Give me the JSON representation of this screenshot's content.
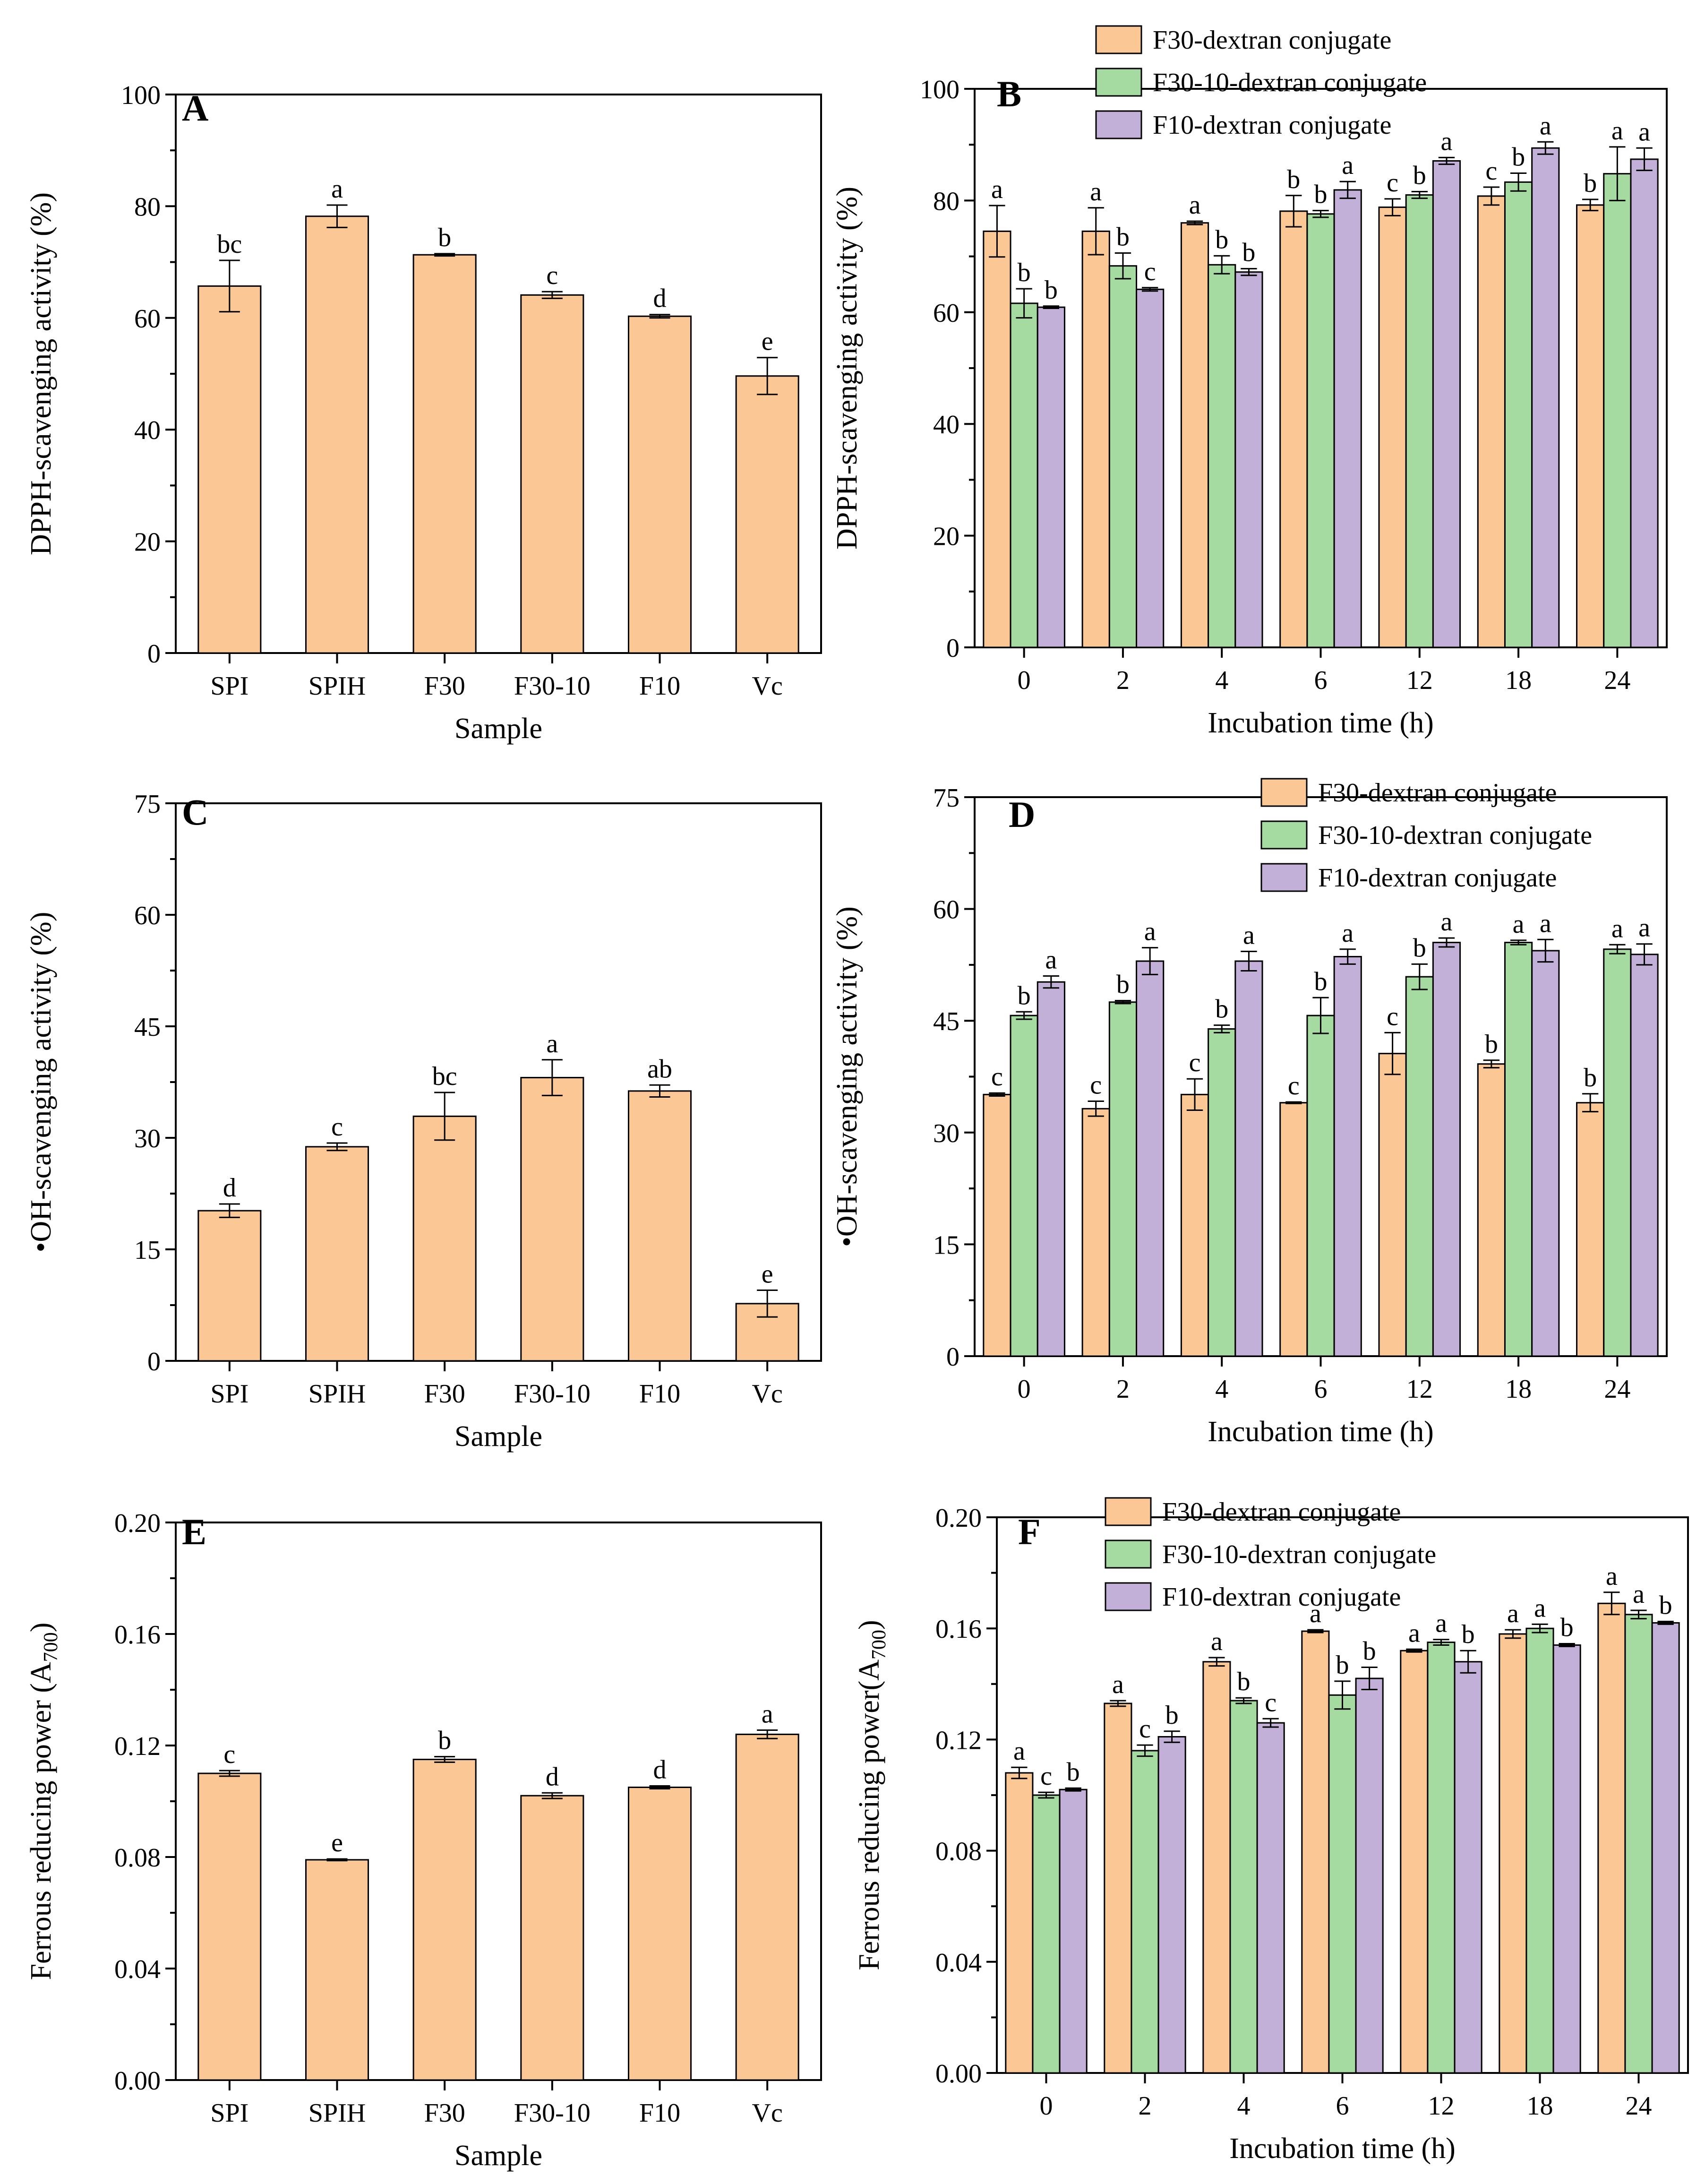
{
  "colors": {
    "f30": "#fbc795",
    "f30_10": "#a5dba0",
    "f10": "#c3b0d9",
    "single": "#fbc795"
  },
  "chart_data": [
    {
      "type": "bar",
      "panel": "A",
      "xlabel": "Sample",
      "ylabel": "DPPH-scavenging activity (%)",
      "ylim": [
        0,
        100
      ],
      "yticks": [
        "0",
        "20",
        "40",
        "60",
        "80",
        "100"
      ],
      "ytick_values": [
        0,
        20,
        40,
        60,
        80,
        100
      ],
      "categories": [
        "SPI",
        "SPIH",
        "F30",
        "F30-10",
        "F10",
        "Vc"
      ],
      "series": [
        {
          "name": "",
          "color_key": "single",
          "values": [
            65.7,
            78.2,
            71.3,
            64.1,
            60.3,
            49.6
          ],
          "errors": [
            4.6,
            2.0,
            0.2,
            0.6,
            0.3,
            3.3
          ],
          "labels": [
            "bc",
            "a",
            "b",
            "c",
            "d",
            "e"
          ]
        }
      ]
    },
    {
      "type": "bar",
      "panel": "B",
      "xlabel": "Incubation time (h)",
      "ylabel": "DPPH-scavenging activity (%)",
      "ylim": [
        0,
        100
      ],
      "yticks": [
        "0",
        "20",
        "40",
        "60",
        "80",
        "100"
      ],
      "ytick_values": [
        0,
        20,
        40,
        60,
        80,
        100
      ],
      "categories": [
        "0",
        "2",
        "4",
        "6",
        "12",
        "18",
        "24"
      ],
      "legend_position": "top-right",
      "series": [
        {
          "name": "F30-dextran conjugate",
          "color_key": "f30",
          "values": [
            74.5,
            74.5,
            76.0,
            78.1,
            78.8,
            80.8,
            79.2
          ],
          "errors": [
            4.6,
            4.2,
            0.3,
            2.8,
            1.5,
            1.6,
            1.0
          ],
          "labels": [
            "a",
            "a",
            "a",
            "b",
            "c",
            "c",
            "b"
          ]
        },
        {
          "name": "F30-10-dextran conjugate",
          "color_key": "f30_10",
          "values": [
            61.6,
            68.3,
            68.5,
            77.6,
            81.0,
            83.3,
            84.8
          ],
          "errors": [
            2.6,
            2.3,
            1.6,
            0.6,
            0.6,
            1.6,
            4.8
          ],
          "labels": [
            "b",
            "b",
            "b",
            "b",
            "b",
            "b",
            "a"
          ]
        },
        {
          "name": "F10-dextran conjugate",
          "color_key": "f10",
          "values": [
            60.9,
            64.1,
            67.2,
            81.9,
            87.1,
            89.4,
            87.4
          ],
          "errors": [
            0.2,
            0.3,
            0.6,
            1.5,
            0.6,
            1.1,
            2.0
          ],
          "labels": [
            "b",
            "c",
            "b",
            "a",
            "a",
            "a",
            "a"
          ]
        }
      ]
    },
    {
      "type": "bar",
      "panel": "C",
      "xlabel": "Sample",
      "ylabel": "•OH-scavenging activity (%)",
      "ylim": [
        0,
        75
      ],
      "yticks": [
        "0",
        "15",
        "30",
        "45",
        "60",
        "75"
      ],
      "ytick_values": [
        0,
        15,
        30,
        45,
        60,
        75
      ],
      "categories": [
        "SPI",
        "SPIH",
        "F30",
        "F30-10",
        "F10",
        "Vc"
      ],
      "series": [
        {
          "name": "",
          "color_key": "single",
          "values": [
            20.2,
            28.8,
            32.9,
            38.1,
            36.3,
            7.7
          ],
          "errors": [
            0.9,
            0.5,
            3.2,
            2.4,
            0.8,
            1.8
          ],
          "labels": [
            "d",
            "c",
            "bc",
            "a",
            "ab",
            "e"
          ]
        }
      ]
    },
    {
      "type": "bar",
      "panel": "D",
      "xlabel": "Incubation time (h)",
      "ylabel": "•OH-scavenging activity (%)",
      "ylim": [
        0,
        75
      ],
      "yticks": [
        "0",
        "15",
        "30",
        "45",
        "60",
        "75"
      ],
      "ytick_values": [
        0,
        15,
        30,
        45,
        60,
        75
      ],
      "categories": [
        "0",
        "2",
        "4",
        "6",
        "12",
        "18",
        "24"
      ],
      "legend_position": "top-right",
      "series": [
        {
          "name": "F30-dextran conjugate",
          "color_key": "f30",
          "values": [
            35.1,
            33.2,
            35.1,
            34.0,
            40.6,
            39.2,
            34.0
          ],
          "errors": [
            0.2,
            1.0,
            2.1,
            0.1,
            2.8,
            0.5,
            1.2
          ],
          "labels": [
            "c",
            "c",
            "c",
            "c",
            "c",
            "b",
            "b"
          ]
        },
        {
          "name": "F30-10-dextran conjugate",
          "color_key": "f30_10",
          "values": [
            45.7,
            47.5,
            43.9,
            45.7,
            50.9,
            55.5,
            54.6
          ],
          "errors": [
            0.5,
            0.2,
            0.5,
            2.4,
            1.7,
            0.3,
            0.6
          ],
          "labels": [
            "b",
            "b",
            "b",
            "b",
            "b",
            "a",
            "a"
          ]
        },
        {
          "name": "F10-dextran conjugate",
          "color_key": "f10",
          "values": [
            50.2,
            53.0,
            53.0,
            53.6,
            55.5,
            54.4,
            53.9
          ],
          "errors": [
            0.8,
            1.8,
            1.3,
            1.0,
            0.6,
            1.5,
            1.4
          ],
          "labels": [
            "a",
            "a",
            "a",
            "a",
            "a",
            "a",
            "a"
          ]
        }
      ]
    },
    {
      "type": "bar",
      "panel": "E",
      "xlabel": "Sample",
      "ylabel": "Ferrous reducing power (A",
      "ylabel_sub": "700",
      "ylabel_end": ")",
      "ylim": [
        0,
        0.2
      ],
      "yticks": [
        "0.00",
        "0.04",
        "0.08",
        "0.12",
        "0.16",
        "0.20"
      ],
      "ytick_values": [
        0,
        0.04,
        0.08,
        0.12,
        0.16,
        0.2
      ],
      "categories": [
        "SPI",
        "SPIH",
        "F30",
        "F30-10",
        "F10",
        "Vc"
      ],
      "series": [
        {
          "name": "",
          "color_key": "single",
          "values": [
            0.11,
            0.079,
            0.115,
            0.102,
            0.105,
            0.124
          ],
          "errors": [
            0.001,
            0.0003,
            0.001,
            0.001,
            0.0005,
            0.0015
          ],
          "labels": [
            "c",
            "e",
            "b",
            "d",
            "d",
            "a"
          ]
        }
      ]
    },
    {
      "type": "bar",
      "panel": "F",
      "xlabel": "Incubation time (h)",
      "ylabel": "Ferrous reducing power(A",
      "ylabel_sub": "700",
      "ylabel_end": ")",
      "ylim": [
        0,
        0.2
      ],
      "yticks": [
        "0.00",
        "0.04",
        "0.08",
        "0.12",
        "0.16",
        "0.20"
      ],
      "ytick_values": [
        0,
        0.04,
        0.08,
        0.12,
        0.16,
        0.2
      ],
      "categories": [
        "0",
        "2",
        "4",
        "6",
        "12",
        "18",
        "24"
      ],
      "legend_position": "top-right",
      "series": [
        {
          "name": "F30-dextran conjugate",
          "color_key": "f30",
          "values": [
            0.108,
            0.133,
            0.148,
            0.159,
            0.152,
            0.158,
            0.169
          ],
          "errors": [
            0.002,
            0.001,
            0.0015,
            0.0005,
            0.0005,
            0.0015,
            0.004
          ],
          "labels": [
            "a",
            "a",
            "a",
            "a",
            "a",
            "a",
            "a"
          ]
        },
        {
          "name": "F30-10-dextran conjugate",
          "color_key": "f30_10",
          "values": [
            0.1,
            0.116,
            0.134,
            0.136,
            0.155,
            0.16,
            0.165
          ],
          "errors": [
            0.001,
            0.002,
            0.001,
            0.005,
            0.001,
            0.0015,
            0.0015
          ],
          "labels": [
            "c",
            "c",
            "b",
            "b",
            "a",
            "a",
            "a"
          ]
        },
        {
          "name": "F10-dextran conjugate",
          "color_key": "f10",
          "values": [
            0.102,
            0.121,
            0.126,
            0.142,
            0.148,
            0.154,
            0.162
          ],
          "errors": [
            0.0005,
            0.002,
            0.0015,
            0.004,
            0.004,
            0.0005,
            0.0005
          ],
          "labels": [
            "b",
            "b",
            "c",
            "b",
            "b",
            "b",
            "b"
          ]
        }
      ]
    }
  ]
}
